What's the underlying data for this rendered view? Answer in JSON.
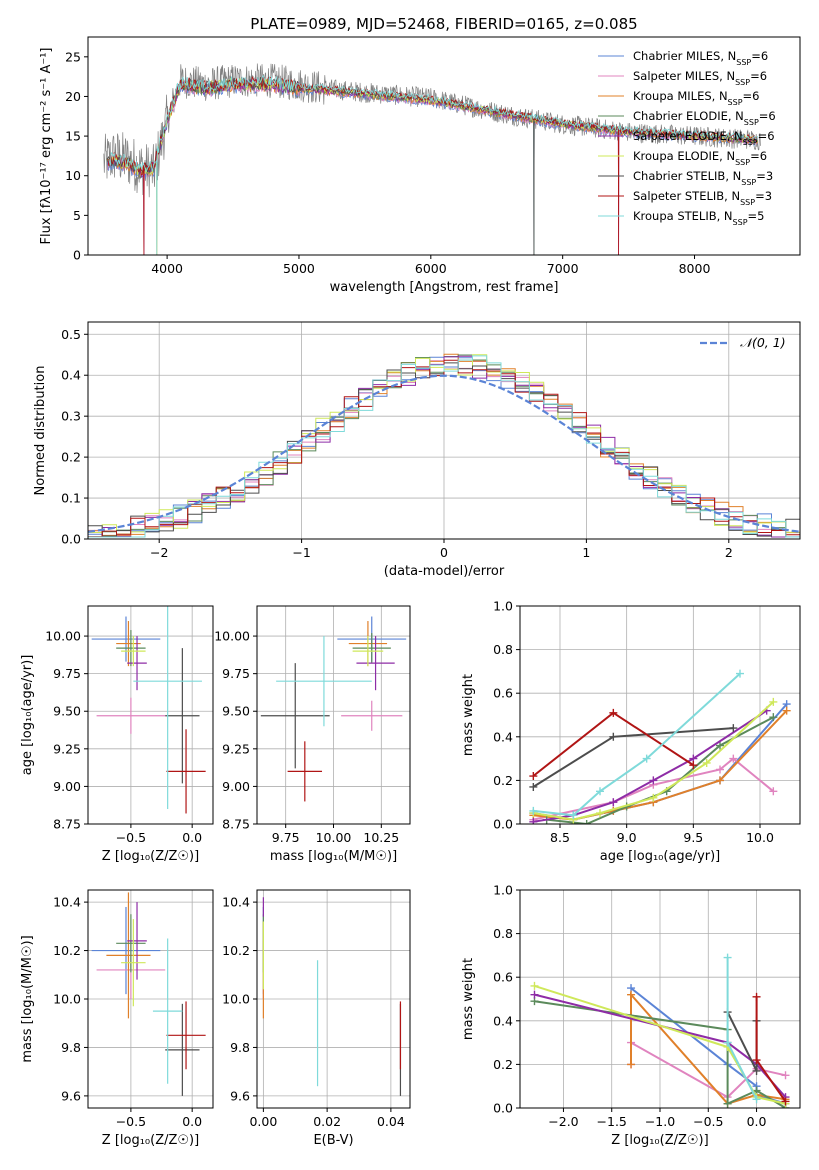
{
  "figure_title": "PLATE=0989, MJD=52468, FIBERID=0165, z=0.085",
  "models": [
    {
      "name": "Chabrier MILES",
      "nssp": "6",
      "color": "#5b84d6"
    },
    {
      "name": "Salpeter MILES",
      "nssp": "6",
      "color": "#e084bf"
    },
    {
      "name": "Kroupa MILES",
      "nssp": "6",
      "color": "#e0802a"
    },
    {
      "name": "Chabrier ELODIE",
      "nssp": "6",
      "color": "#5b8a5b"
    },
    {
      "name": "Salpeter ELODIE",
      "nssp": "6",
      "color": "#8e2ca6"
    },
    {
      "name": "Kroupa ELODIE",
      "nssp": "6",
      "color": "#cfe85a"
    },
    {
      "name": "Chabrier STELIB",
      "nssp": "3",
      "color": "#4d4d4d"
    },
    {
      "name": "Salpeter STELIB",
      "nssp": "3",
      "color": "#b01515"
    },
    {
      "name": "Kroupa STELIB",
      "nssp": "5",
      "color": "#7fdada"
    }
  ],
  "chart_data": [
    {
      "id": "spectrum",
      "type": "line",
      "xlabel": "wavelength [Angstrom, rest frame]",
      "ylabel": "Flux [fλ10⁻¹⁷ erg cm⁻² s⁻¹ A⁻¹]",
      "xlim": [
        3400,
        8800
      ],
      "ylim": [
        0,
        27.5
      ],
      "xticks": [
        4000,
        5000,
        6000,
        7000,
        8000
      ],
      "yticks": [
        0,
        5,
        10,
        15,
        20,
        25
      ],
      "data_color": "#808080",
      "data_anchors": {
        "x": [
          3500,
          3600,
          3700,
          3800,
          3900,
          4000,
          4100,
          4300,
          4500,
          4800,
          5000,
          5200,
          5500,
          6000,
          6500,
          7000,
          7500,
          8000,
          8500
        ],
        "y": [
          11.5,
          12.5,
          12,
          11,
          10.5,
          17,
          22,
          21.5,
          22,
          22,
          21.5,
          21,
          20.5,
          19.8,
          18,
          16.5,
          15.5,
          15,
          14.5
        ]
      },
      "model_anchors": {
        "x": [
          3500,
          3600,
          3700,
          3800,
          3900,
          4000,
          4100,
          4300,
          4500,
          4800,
          5000,
          5200,
          5500,
          6000,
          6500,
          7000,
          7500,
          8000,
          8500
        ],
        "y": [
          11.3,
          12,
          11.5,
          10.5,
          11,
          17,
          21.5,
          21,
          21.5,
          21.5,
          21,
          20.8,
          20.3,
          19.5,
          18,
          16.5,
          15.5,
          15,
          14.5
        ]
      },
      "legend_loc": "upper right"
    },
    {
      "id": "residuals",
      "type": "histogram",
      "xlabel": "(data-model)/error",
      "ylabel": "Normed distribution",
      "xlim": [
        -2.5,
        2.5
      ],
      "ylim": [
        0,
        0.53
      ],
      "xticks": [
        -2,
        -1,
        0,
        1,
        2
      ],
      "yticks": [
        0.0,
        0.1,
        0.2,
        0.3,
        0.4,
        0.5
      ],
      "grid": true,
      "gaussian_label": "𝒩(0, 1)",
      "gaussian_color": "#5b84d6",
      "bin_width": 0.1,
      "bins_from": -2.5,
      "legend_loc": "upper right"
    },
    {
      "id": "z_age",
      "type": "errorbar",
      "xlabel": "Z [log₁₀(Z/Z☉)]",
      "ylabel": "age  [log₁₀(age/yr)]",
      "xlim": [
        -0.85,
        0.17
      ],
      "ylim": [
        8.75,
        10.2
      ],
      "xticks": [
        -0.5,
        0.0
      ],
      "xticklabels": [
        "−0.5",
        "0.0"
      ],
      "yticks": [
        8.75,
        9.0,
        9.25,
        9.5,
        9.75,
        10.0
      ],
      "yticklabels": [
        "8.75",
        "9.00",
        "9.25",
        "9.50",
        "9.75",
        "10.00"
      ],
      "grid": true,
      "points": [
        {
          "m": 0,
          "x": -0.54,
          "xerr": 0.28,
          "y": 9.98,
          "yerr": 0.15
        },
        {
          "m": 1,
          "x": -0.5,
          "xerr": 0.28,
          "y": 9.47,
          "yerr": 0.12
        },
        {
          "m": 2,
          "x": -0.52,
          "xerr": 0.1,
          "y": 9.95,
          "yerr": 0.15
        },
        {
          "m": 3,
          "x": -0.5,
          "xerr": 0.12,
          "y": 9.92,
          "yerr": 0.12
        },
        {
          "m": 4,
          "x": -0.45,
          "xerr": 0.08,
          "y": 9.82,
          "yerr": 0.18
        },
        {
          "m": 5,
          "x": -0.48,
          "xerr": 0.1,
          "y": 9.9,
          "yerr": 0.1
        },
        {
          "m": 6,
          "x": -0.08,
          "xerr": 0.14,
          "y": 9.47,
          "yerr": 0.45
        },
        {
          "m": 7,
          "x": -0.05,
          "xerr": 0.16,
          "y": 9.1,
          "yerr": 0.28
        },
        {
          "m": 8,
          "x": -0.2,
          "xerr": 0.28,
          "y": 9.7,
          "yerr": 0.85
        }
      ]
    },
    {
      "id": "mass_age",
      "type": "errorbar",
      "xlabel": "mass [log₁₀(M/M☉)]",
      "ylabel": "",
      "xlim": [
        9.6,
        10.4
      ],
      "ylim": [
        8.75,
        10.2
      ],
      "xticks": [
        9.75,
        10.0,
        10.25
      ],
      "xticklabels": [
        "9.75",
        "10.00",
        "10.25"
      ],
      "yticks": [
        8.75,
        9.0,
        9.25,
        9.5,
        9.75,
        10.0
      ],
      "yticklabels": [
        "8.75",
        "9.00",
        "9.25",
        "9.50",
        "9.75",
        "10.00"
      ],
      "grid": true,
      "points": [
        {
          "m": 0,
          "x": 10.2,
          "xerr": 0.18,
          "y": 9.98,
          "yerr": 0.15
        },
        {
          "m": 1,
          "x": 10.2,
          "xerr": 0.16,
          "y": 9.47,
          "yerr": 0.1
        },
        {
          "m": 2,
          "x": 10.18,
          "xerr": 0.1,
          "y": 9.95,
          "yerr": 0.15
        },
        {
          "m": 3,
          "x": 10.2,
          "xerr": 0.1,
          "y": 9.92,
          "yerr": 0.1
        },
        {
          "m": 4,
          "x": 10.22,
          "xerr": 0.1,
          "y": 9.82,
          "yerr": 0.18
        },
        {
          "m": 5,
          "x": 10.18,
          "xerr": 0.08,
          "y": 9.9,
          "yerr": 0.1
        },
        {
          "m": 6,
          "x": 9.8,
          "xerr": 0.18,
          "y": 9.47,
          "yerr": 0.35
        },
        {
          "m": 7,
          "x": 9.85,
          "xerr": 0.09,
          "y": 9.1,
          "yerr": 0.2
        },
        {
          "m": 8,
          "x": 9.95,
          "xerr": 0.25,
          "y": 9.7,
          "yerr": 0.3
        }
      ]
    },
    {
      "id": "weight_age",
      "type": "line",
      "xlabel": "age  [log₁₀(age/yr)]",
      "ylabel": "mass weight",
      "xlim": [
        8.2,
        10.3
      ],
      "ylim": [
        0.0,
        1.0
      ],
      "xticks": [
        8.5,
        9.0,
        9.5,
        10.0
      ],
      "xticklabels": [
        "8.5",
        "9.0",
        "9.5",
        "10.0"
      ],
      "yticks": [
        0.0,
        0.2,
        0.4,
        0.6,
        0.8,
        1.0
      ],
      "grid": true,
      "series": [
        {
          "m": 0,
          "x": [
            8.3,
            8.6,
            8.9,
            9.2,
            9.7,
            10.2
          ],
          "y": [
            0.05,
            0.02,
            0.06,
            0.1,
            0.2,
            0.55
          ]
        },
        {
          "m": 1,
          "x": [
            8.3,
            8.9,
            9.2,
            9.7,
            9.8,
            10.1
          ],
          "y": [
            0.02,
            0.1,
            0.18,
            0.25,
            0.3,
            0.15
          ]
        },
        {
          "m": 2,
          "x": [
            8.3,
            8.6,
            8.9,
            9.2,
            9.7,
            10.2
          ],
          "y": [
            0.04,
            0.02,
            0.06,
            0.1,
            0.2,
            0.52
          ]
        },
        {
          "m": 3,
          "x": [
            8.4,
            8.7,
            9.0,
            9.3,
            9.7,
            10.1
          ],
          "y": [
            0.02,
            0.0,
            0.08,
            0.15,
            0.36,
            0.49
          ]
        },
        {
          "m": 4,
          "x": [
            8.3,
            8.6,
            8.9,
            9.2,
            9.5,
            10.05
          ],
          "y": [
            0.01,
            0.04,
            0.1,
            0.2,
            0.3,
            0.52
          ]
        },
        {
          "m": 5,
          "x": [
            8.3,
            8.6,
            8.8,
            9.2,
            9.6,
            10.1
          ],
          "y": [
            0.05,
            0.02,
            0.05,
            0.12,
            0.28,
            0.56
          ]
        },
        {
          "m": 6,
          "x": [
            8.3,
            8.9,
            9.8
          ],
          "y": [
            0.17,
            0.4,
            0.44
          ]
        },
        {
          "m": 7,
          "x": [
            8.3,
            8.9,
            9.5
          ],
          "y": [
            0.22,
            0.51,
            0.27
          ]
        },
        {
          "m": 8,
          "x": [
            8.3,
            8.6,
            8.8,
            9.15,
            9.85
          ],
          "y": [
            0.06,
            0.04,
            0.15,
            0.3,
            0.69
          ]
        }
      ]
    },
    {
      "id": "z_mass",
      "type": "errorbar",
      "xlabel": "Z [log₁₀(Z/Z☉)]",
      "ylabel": "mass [log₁₀(M/M☉)]",
      "xlim": [
        -0.85,
        0.17
      ],
      "ylim": [
        9.55,
        10.45
      ],
      "xticks": [
        -0.5,
        0.0
      ],
      "xticklabels": [
        "−0.5",
        "0.0"
      ],
      "yticks": [
        9.6,
        9.8,
        10.0,
        10.2,
        10.4
      ],
      "grid": true,
      "points": [
        {
          "m": 0,
          "x": -0.54,
          "xerr": 0.28,
          "y": 10.2,
          "yerr": 0.18
        },
        {
          "m": 1,
          "x": -0.5,
          "xerr": 0.28,
          "y": 10.12,
          "yerr": 0.12
        },
        {
          "m": 2,
          "x": -0.52,
          "xerr": 0.18,
          "y": 10.18,
          "yerr": 0.26
        },
        {
          "m": 3,
          "x": -0.5,
          "xerr": 0.12,
          "y": 10.23,
          "yerr": 0.12
        },
        {
          "m": 4,
          "x": -0.45,
          "xerr": 0.08,
          "y": 10.24,
          "yerr": 0.16
        },
        {
          "m": 5,
          "x": -0.48,
          "xerr": 0.1,
          "y": 10.15,
          "yerr": 0.18
        },
        {
          "m": 6,
          "x": -0.08,
          "xerr": 0.14,
          "y": 9.79,
          "yerr": 0.19
        },
        {
          "m": 7,
          "x": -0.05,
          "xerr": 0.16,
          "y": 9.85,
          "yerr": 0.14
        },
        {
          "m": 8,
          "x": -0.2,
          "xerr": 0.12,
          "y": 9.95,
          "yerr": 0.3
        }
      ]
    },
    {
      "id": "ebv_mass",
      "type": "errorbar",
      "xlabel": "E(B-V)",
      "ylabel": "",
      "xlim": [
        -0.002,
        0.046
      ],
      "ylim": [
        9.55,
        10.45
      ],
      "xticks": [
        0.0,
        0.02,
        0.04
      ],
      "xticklabels": [
        "0.00",
        "0.02",
        "0.04"
      ],
      "yticks": [
        9.6,
        9.8,
        10.0,
        10.2,
        10.4
      ],
      "grid": true,
      "points": [
        {
          "m": 0,
          "x": 0.0,
          "xerr": 0,
          "y": 10.2,
          "yerr": 0.18
        },
        {
          "m": 1,
          "x": 0.0,
          "xerr": 0,
          "y": 10.12,
          "yerr": 0.12
        },
        {
          "m": 2,
          "x": 0.0,
          "xerr": 0,
          "y": 10.12,
          "yerr": 0.2
        },
        {
          "m": 3,
          "x": 0.0,
          "xerr": 0,
          "y": 10.23,
          "yerr": 0.12
        },
        {
          "m": 4,
          "x": 0.0,
          "xerr": 0,
          "y": 10.38,
          "yerr": 0.04
        },
        {
          "m": 5,
          "x": 0.0,
          "xerr": 0,
          "y": 10.18,
          "yerr": 0.14
        },
        {
          "m": 6,
          "x": 0.043,
          "xerr": 0,
          "y": 9.79,
          "yerr": 0.19
        },
        {
          "m": 7,
          "x": 0.043,
          "xerr": 0,
          "y": 9.85,
          "yerr": 0.14
        },
        {
          "m": 8,
          "x": 0.017,
          "xerr": 0,
          "y": 9.9,
          "yerr": 0.26
        }
      ]
    },
    {
      "id": "weight_z",
      "type": "line",
      "xlabel": "Z [log₁₀(Z/Z☉)]",
      "ylabel": "mass weight",
      "xlim": [
        -2.45,
        0.45
      ],
      "ylim": [
        0.0,
        1.0
      ],
      "xticks": [
        -2.0,
        -1.5,
        -1.0,
        -0.5,
        0.0
      ],
      "xticklabels": [
        "−2.0",
        "−1.5",
        "−1.0",
        "−0.5",
        "0.0"
      ],
      "yticks": [
        0.0,
        0.2,
        0.4,
        0.6,
        0.8,
        1.0
      ],
      "grid": true,
      "series": [
        {
          "m": 0,
          "x": [
            -1.3,
            -0.3,
            0.0,
            0.0,
            0.3
          ],
          "y": [
            0.55,
            0.2,
            0.1,
            0.06,
            0.02
          ]
        },
        {
          "m": 1,
          "x": [
            -1.3,
            -1.3,
            -0.3,
            0.0,
            0.3
          ],
          "y": [
            0.2,
            0.3,
            0.05,
            0.18,
            0.15
          ]
        },
        {
          "m": 2,
          "x": [
            -1.3,
            -1.3,
            -0.3,
            0.0,
            0.3
          ],
          "y": [
            0.2,
            0.52,
            0.02,
            0.06,
            0.04
          ]
        },
        {
          "m": 3,
          "x": [
            -2.3,
            -0.3,
            -0.3,
            0.0,
            0.3
          ],
          "y": [
            0.49,
            0.36,
            0.02,
            0.08,
            0.0
          ]
        },
        {
          "m": 4,
          "x": [
            -2.3,
            -0.3,
            0.0,
            0.3
          ],
          "y": [
            0.52,
            0.3,
            0.2,
            0.05
          ]
        },
        {
          "m": 5,
          "x": [
            -2.3,
            -0.3,
            0.0,
            0.3
          ],
          "y": [
            0.56,
            0.28,
            0.05,
            0.02
          ]
        },
        {
          "m": 6,
          "x": [
            -0.3,
            0.0,
            0.0
          ],
          "y": [
            0.44,
            0.17,
            0.4
          ]
        },
        {
          "m": 7,
          "x": [
            0.0,
            0.0,
            0.3
          ],
          "y": [
            0.51,
            0.22,
            0.03
          ]
        },
        {
          "m": 8,
          "x": [
            -0.3,
            -0.3,
            0.0
          ],
          "y": [
            0.69,
            0.3,
            0.04
          ]
        }
      ]
    }
  ]
}
